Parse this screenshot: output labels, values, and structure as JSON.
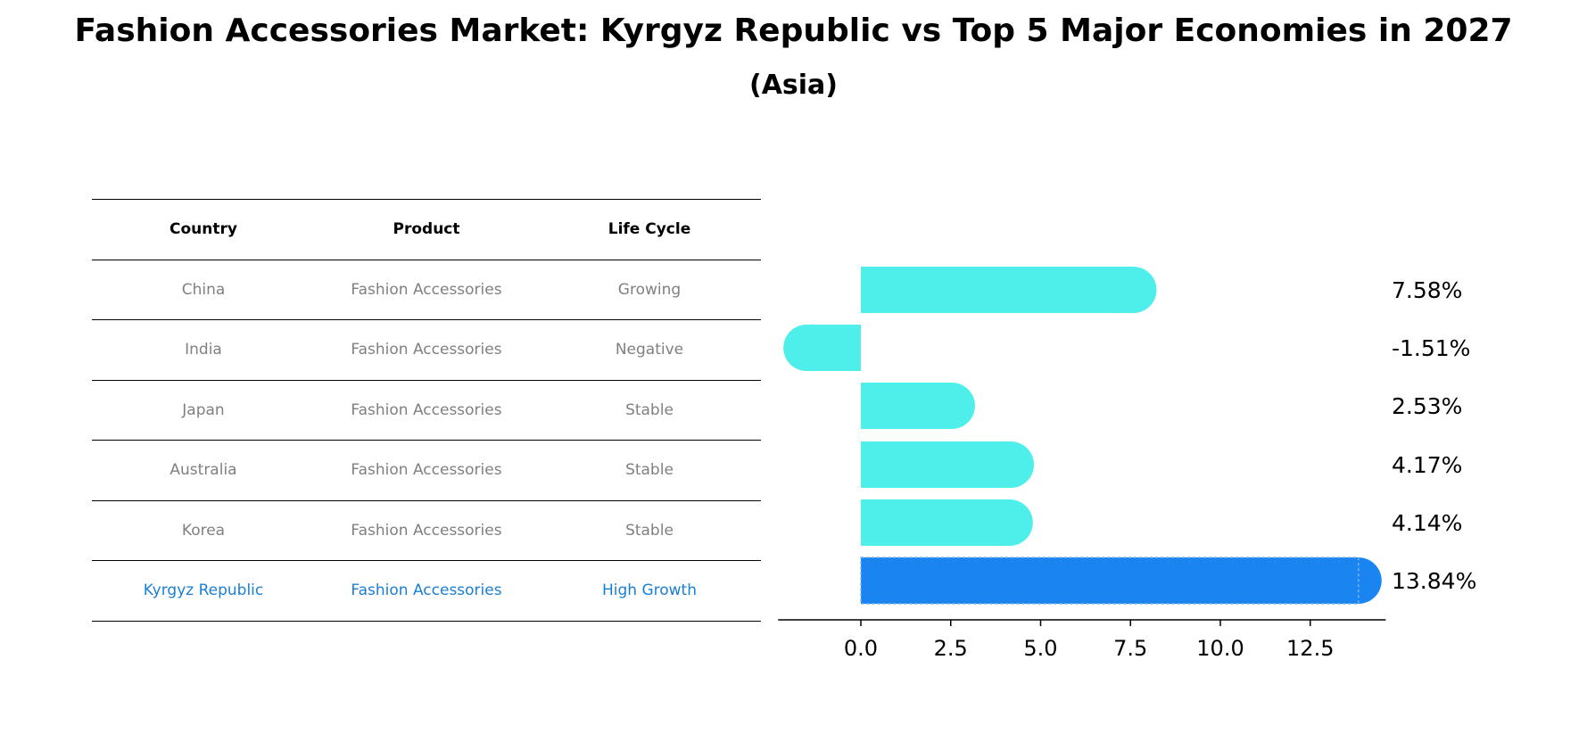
{
  "title": "Fashion Accessories Market: Kyrgyz Republic vs Top 5 Major Economies in 2027",
  "subtitle": "(Asia)",
  "table": {
    "headers": [
      "Country",
      "Product",
      "Life Cycle"
    ],
    "rows": [
      [
        "China",
        "Fashion Accessories",
        "Growing"
      ],
      [
        "India",
        "Fashion Accessories",
        "Negative"
      ],
      [
        "Japan",
        "Fashion Accessories",
        "Stable"
      ],
      [
        "Australia",
        "Fashion Accessories",
        "Stable"
      ],
      [
        "Korea",
        "Fashion Accessories",
        "Stable"
      ],
      [
        "Kyrgyz Republic",
        "Fashion Accessories",
        "High Growth"
      ]
    ]
  },
  "chart_data": {
    "type": "bar",
    "orientation": "horizontal",
    "categories": [
      "China",
      "India",
      "Japan",
      "Australia",
      "Korea",
      "Kyrgyz Republic"
    ],
    "values": [
      7.58,
      -1.51,
      2.53,
      4.17,
      4.14,
      13.84
    ],
    "value_labels": [
      "7.58%",
      "-1.51%",
      "2.53%",
      "4.17%",
      "4.14%",
      "13.84%"
    ],
    "xlim": [
      -2.3,
      14.6
    ],
    "xticks": [
      0.0,
      2.5,
      5.0,
      7.5,
      10.0,
      12.5
    ],
    "xtick_labels": [
      "0.0",
      "2.5",
      "5.0",
      "7.5",
      "10.0",
      "12.5"
    ],
    "colors": {
      "default": "#4eeeea",
      "highlight": "#1a85f0"
    },
    "highlight": "Kyrgyz Republic"
  }
}
